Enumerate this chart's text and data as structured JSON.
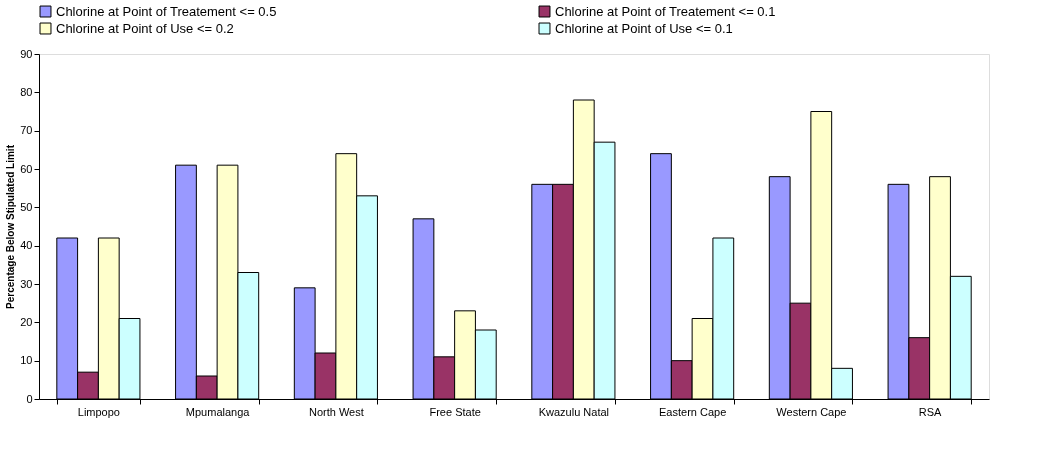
{
  "chart_data": {
    "type": "bar",
    "ylabel": "Percentage Below Stipulated Limit",
    "categories": [
      "Limpopo",
      "Mpumalanga",
      "North West",
      "Free State",
      "Kwazulu Natal",
      "Eastern Cape",
      "Western Cape",
      "RSA"
    ],
    "series": [
      {
        "name": "Chlorine at Point of Treatement <= 0.5",
        "color": "#9999ff",
        "values": [
          42,
          61,
          29,
          47,
          56,
          64,
          58,
          56
        ]
      },
      {
        "name": "Chlorine at Point of Treatement <= 0.1",
        "color": "#993366",
        "values": [
          7,
          6,
          12,
          11,
          56,
          10,
          25,
          16
        ]
      },
      {
        "name": "Chlorine at Point of Use <= 0.2",
        "color": "#ffffcc",
        "values": [
          42,
          61,
          64,
          23,
          78,
          21,
          75,
          58
        ]
      },
      {
        "name": "Chlorine at Point of Use <= 0.1",
        "color": "#ccffff",
        "values": [
          21,
          33,
          53,
          18,
          67,
          42,
          8,
          32
        ]
      }
    ],
    "ylim": [
      0,
      90
    ],
    "yticks": [
      0,
      10,
      20,
      30,
      40,
      50,
      60,
      70,
      80,
      90
    ],
    "grid": false,
    "legend": "top"
  }
}
